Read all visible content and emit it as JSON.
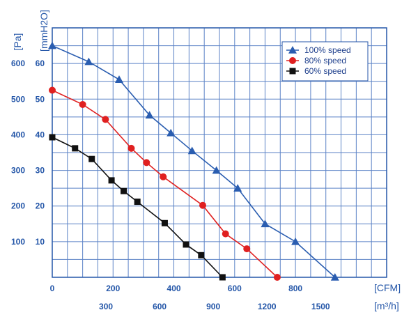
{
  "chart_data": {
    "type": "line",
    "title": "",
    "y_axis_pa": {
      "unit": "[Pa]",
      "min": 0,
      "max": 700,
      "ticks": [
        100,
        200,
        300,
        400,
        500,
        600
      ]
    },
    "y_axis_mmh2o": {
      "unit": "[mmH2O]",
      "min": 0,
      "max": 70,
      "ticks": [
        10,
        20,
        30,
        40,
        50,
        60
      ]
    },
    "x_axis_cfm": {
      "unit": "[CFM]",
      "min": 0,
      "max": 1100,
      "ticks": [
        0,
        200,
        400,
        600,
        800
      ]
    },
    "x_axis_m3h": {
      "unit": "[m³/h]",
      "ticks": [
        300,
        600,
        900,
        1200,
        1500
      ]
    },
    "grid": true,
    "legend_position": "top-right",
    "series": [
      {
        "name": "100% speed",
        "marker": "triangle",
        "color": "#2a5db0",
        "points": [
          [
            0,
            650
          ],
          [
            120,
            605
          ],
          [
            220,
            555
          ],
          [
            320,
            455
          ],
          [
            390,
            405
          ],
          [
            460,
            355
          ],
          [
            540,
            300
          ],
          [
            610,
            250
          ],
          [
            700,
            150
          ],
          [
            800,
            100
          ],
          [
            930,
            0
          ]
        ]
      },
      {
        "name": "80% speed",
        "marker": "circle",
        "color": "#e02020",
        "points": [
          [
            0,
            525
          ],
          [
            100,
            485
          ],
          [
            175,
            443
          ],
          [
            260,
            362
          ],
          [
            310,
            322
          ],
          [
            365,
            282
          ],
          [
            495,
            202
          ],
          [
            570,
            122
          ],
          [
            640,
            80
          ],
          [
            740,
            0
          ]
        ]
      },
      {
        "name": "60% speed",
        "marker": "square",
        "color": "#111111",
        "points": [
          [
            0,
            393
          ],
          [
            75,
            362
          ],
          [
            130,
            332
          ],
          [
            195,
            272
          ],
          [
            235,
            242
          ],
          [
            280,
            212
          ],
          [
            370,
            152
          ],
          [
            440,
            92
          ],
          [
            490,
            62
          ],
          [
            560,
            0
          ]
        ]
      }
    ]
  }
}
